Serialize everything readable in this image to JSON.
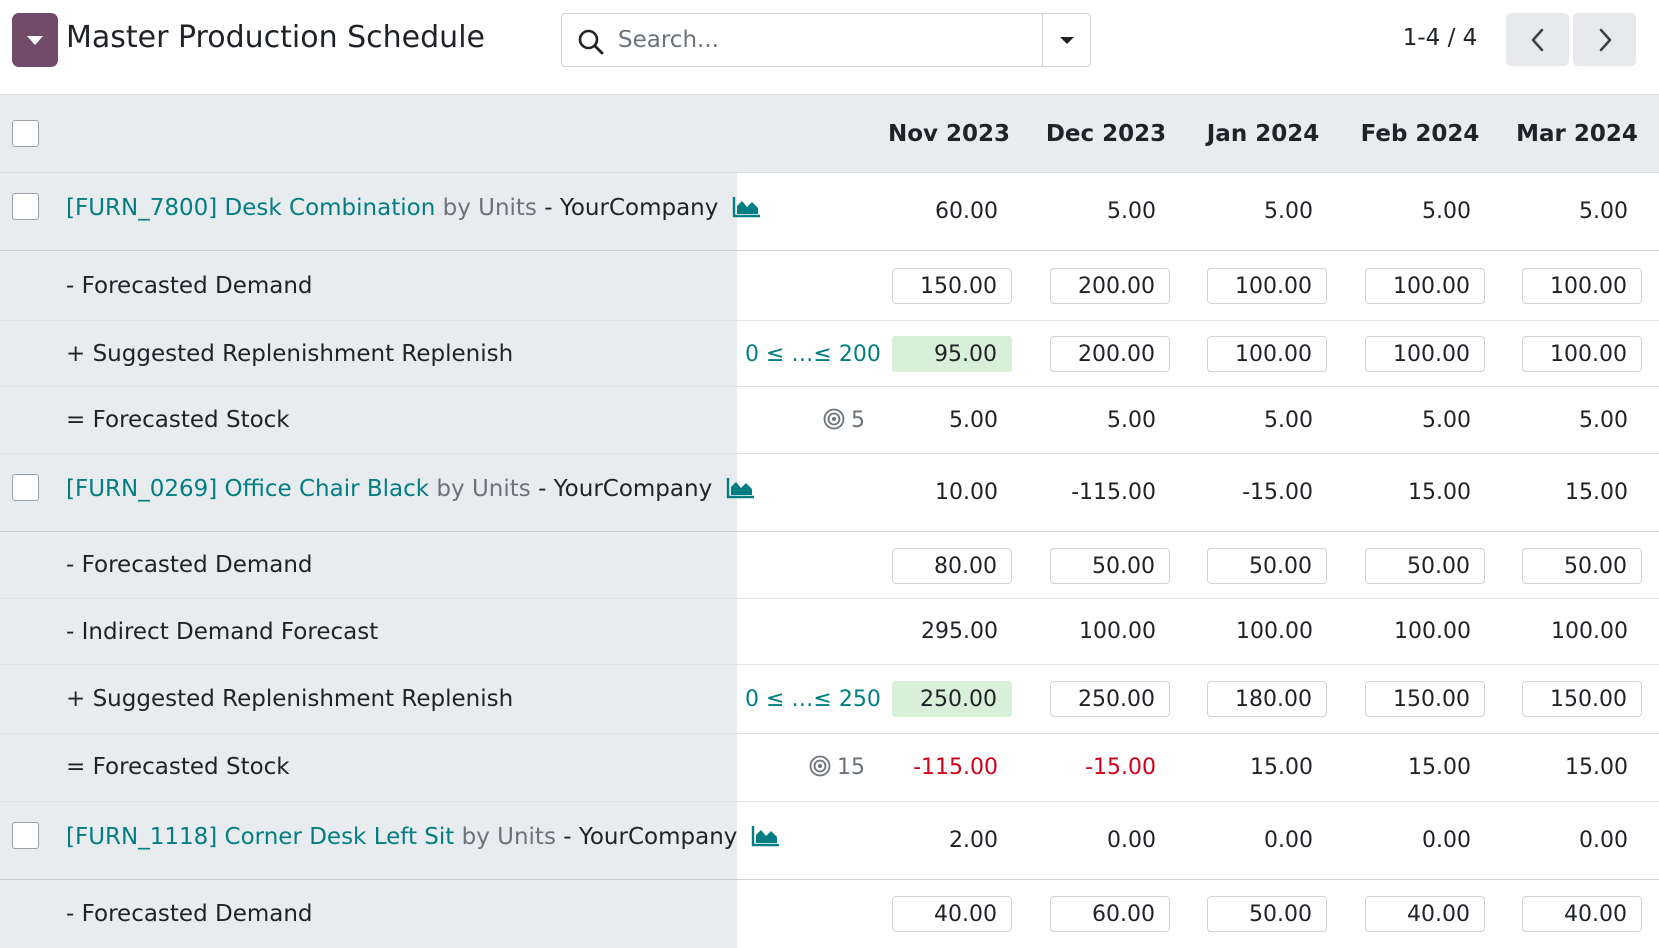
{
  "app": {
    "title": "Master Production Schedule",
    "search_placeholder": "Search...",
    "pager": "1-4 / 4",
    "accent_color": "#714b67",
    "link_color": "#017e84",
    "negative_color": "#d0021b",
    "highlight_color": "#d8f0d8"
  },
  "columns": [
    "Nov 2023",
    "Dec 2023",
    "Jan 2024",
    "Feb 2024",
    "Mar 2024"
  ],
  "products": [
    {
      "code": "[FURN_7800] Desk Combination",
      "uom": "by Units",
      "company": "- YourCompany",
      "totals": [
        "60.00",
        "5.00",
        "5.00",
        "5.00",
        "5.00"
      ],
      "lines": [
        {
          "label": "- Forecasted Demand",
          "values": [
            "150.00",
            "200.00",
            "100.00",
            "100.00",
            "100.00"
          ],
          "style": "box"
        },
        {
          "label": "+ Suggested Replenishment Replenish",
          "bounds": "0 ≤ …≤ 200",
          "values": [
            "95.00",
            "200.00",
            "100.00",
            "100.00",
            "100.00"
          ],
          "style": "box",
          "highlight_first": true
        },
        {
          "label": "= Forecasted Stock",
          "safety": "5",
          "values": [
            "5.00",
            "5.00",
            "5.00",
            "5.00",
            "5.00"
          ],
          "style": "plain"
        }
      ]
    },
    {
      "code": "[FURN_0269] Office Chair Black",
      "uom": "by Units",
      "company": "- YourCompany",
      "totals": [
        "10.00",
        "-115.00",
        "-15.00",
        "15.00",
        "15.00"
      ],
      "lines": [
        {
          "label": "- Forecasted Demand",
          "values": [
            "80.00",
            "50.00",
            "50.00",
            "50.00",
            "50.00"
          ],
          "style": "box"
        },
        {
          "label": "- Indirect Demand Forecast",
          "values": [
            "295.00",
            "100.00",
            "100.00",
            "100.00",
            "100.00"
          ],
          "style": "plain"
        },
        {
          "label": "+ Suggested Replenishment Replenish",
          "bounds": "0 ≤ …≤ 250",
          "values": [
            "250.00",
            "250.00",
            "180.00",
            "150.00",
            "150.00"
          ],
          "style": "box",
          "highlight_first": true
        },
        {
          "label": "= Forecasted Stock",
          "safety": "15",
          "values": [
            "-115.00",
            "-15.00",
            "15.00",
            "15.00",
            "15.00"
          ],
          "style": "plain",
          "negative_cells": [
            0,
            1
          ]
        }
      ]
    },
    {
      "code": "[FURN_1118] Corner Desk Left Sit",
      "uom": "by Units",
      "company": "- YourCompany",
      "totals": [
        "2.00",
        "0.00",
        "0.00",
        "0.00",
        "0.00"
      ],
      "lines": [
        {
          "label": "- Forecasted Demand",
          "values": [
            "40.00",
            "60.00",
            "50.00",
            "40.00",
            "40.00"
          ],
          "style": "box"
        }
      ]
    }
  ]
}
